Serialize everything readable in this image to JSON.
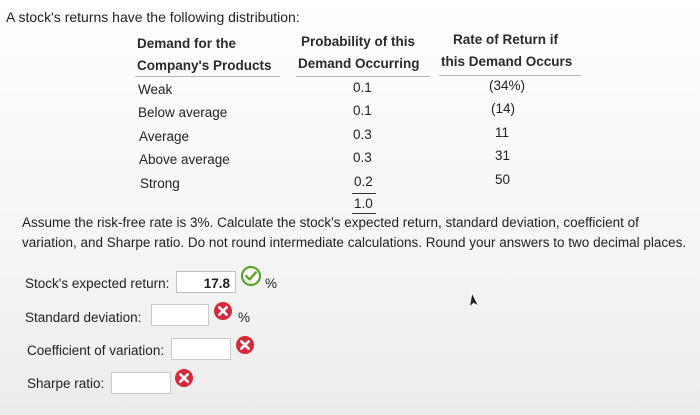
{
  "problem": {
    "intro": "A stock's returns have the following distribution:",
    "table": {
      "headers": {
        "demand": [
          "Demand for the",
          "Company's Products"
        ],
        "probability": [
          "Probability of this",
          "Demand Occurring"
        ],
        "return": [
          "Rate of Return if",
          "this Demand Occurs"
        ]
      },
      "rows": [
        {
          "demand": "Weak",
          "probability": "0.1",
          "return": "(34%)"
        },
        {
          "demand": "Below average",
          "probability": "0.1",
          "return": "(14)"
        },
        {
          "demand": "Average",
          "probability": "0.3",
          "return": "11"
        },
        {
          "demand": "Above average",
          "probability": "0.3",
          "return": "31"
        },
        {
          "demand": "Strong",
          "probability": "0.2",
          "return": "50"
        }
      ],
      "probability_total": "1.0"
    },
    "instructions": "Assume the risk-free rate is 3%. Calculate the stock's expected return, standard deviation, coefficient of variation, and Sharpe ratio. Do not round intermediate calculations. Round your answers to two decimal places."
  },
  "answers": {
    "expected_return": {
      "label": "Stock's expected return:",
      "value": "17.8",
      "unit": "%",
      "status": "correct"
    },
    "std_dev": {
      "label": "Standard deviation:",
      "value": "",
      "unit": "%",
      "status": "incorrect"
    },
    "cov": {
      "label": "Coefficient of variation:",
      "value": "",
      "status": "incorrect"
    },
    "sharpe": {
      "label": "Sharpe ratio:",
      "value": "",
      "status": "incorrect"
    }
  },
  "colors": {
    "correct": "#5aa32a",
    "incorrect": "#d6293b"
  },
  "icons": {
    "correct": "check-circle-icon",
    "incorrect": "x-circle-icon",
    "pointer": "mouse-pointer-icon"
  }
}
